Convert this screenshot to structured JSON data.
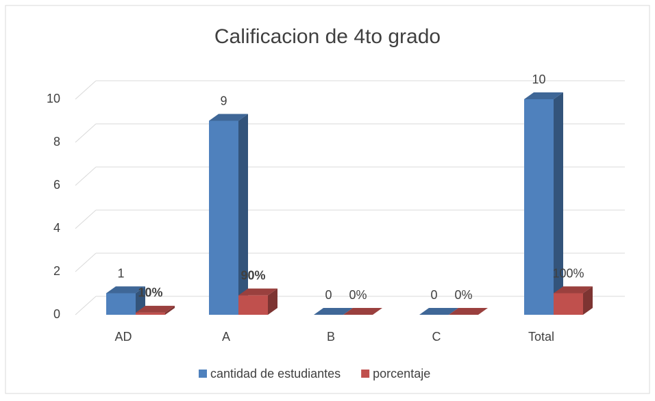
{
  "chart_data": {
    "type": "bar3d",
    "title": "Calificacion de 4to grado",
    "categories": [
      "AD",
      "A",
      "B",
      "C",
      "Total"
    ],
    "series": [
      {
        "name": "cantidad de estudiantes",
        "color": "#4f81bd",
        "values": [
          1,
          9,
          0,
          0,
          10
        ]
      },
      {
        "name": "porcentaje",
        "color": "#c0504d",
        "values": [
          0.1,
          0.9,
          0,
          0,
          1
        ],
        "value_labels": [
          "10%",
          "90%",
          "0%",
          "0%",
          "100%"
        ],
        "value_label_bold": [
          true,
          true,
          false,
          false,
          false
        ]
      }
    ],
    "ylim": [
      0,
      10
    ],
    "yticks": [
      0,
      2,
      4,
      6,
      8,
      10
    ],
    "grid": true,
    "legend": "bottom"
  }
}
